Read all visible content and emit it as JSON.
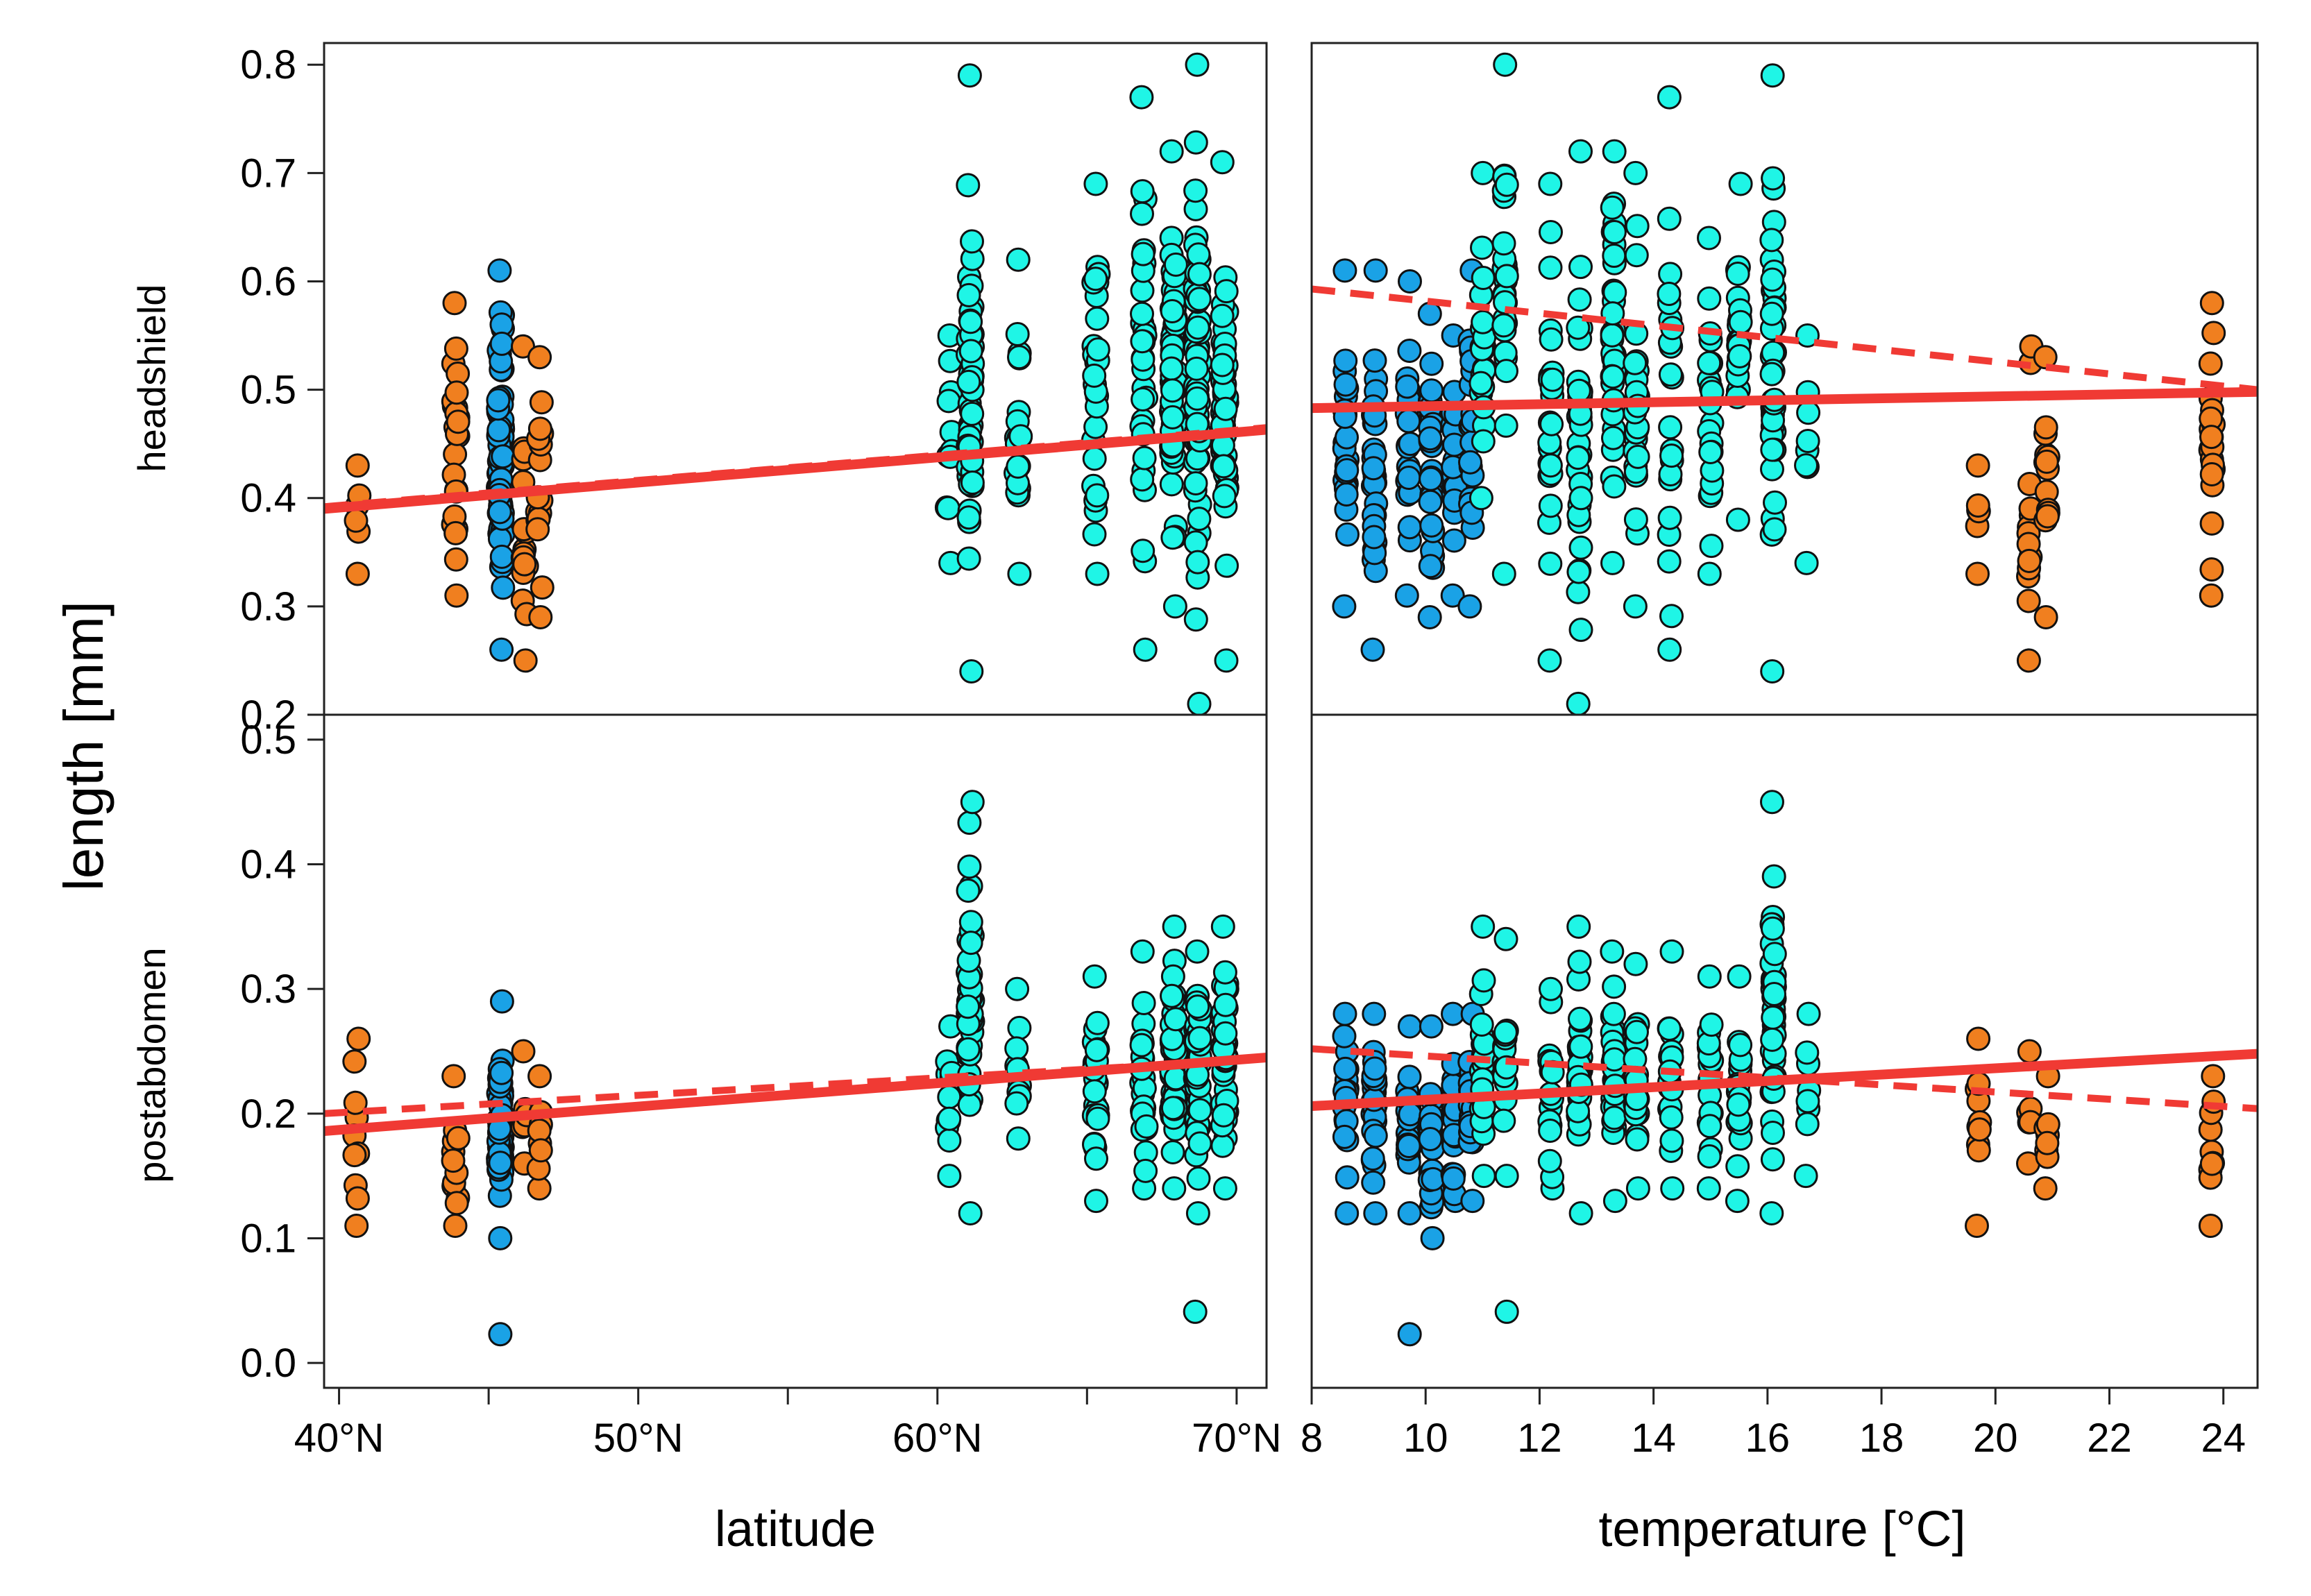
{
  "colors": {
    "orange": "#f07f1f",
    "blue": "#1aa2e6",
    "cyan": "#1ff5e6",
    "fit": "#f03a34",
    "outline": "#111111"
  },
  "chart_data": {
    "type": "scatter",
    "ylabel": "length [mm]",
    "row_labels": [
      "headshield",
      "postabdomen"
    ],
    "panels": [
      {
        "id": "lat-head",
        "row": 0,
        "col": 0,
        "xlim": [
          39.5,
          71
        ],
        "ylim": [
          0.2,
          0.82
        ],
        "yticks": [
          0.2,
          0.3,
          0.4,
          0.5,
          0.6,
          0.7,
          0.8
        ],
        "ytick_labels": [
          "0.2",
          "0.3",
          "0.4",
          "0.5",
          "0.6",
          "0.7",
          "0.8"
        ],
        "groups": [
          {
            "x": 40.6,
            "color": "orange",
            "ymin": 0.33,
            "ymax": 0.43,
            "n": 6
          },
          {
            "x": 43.9,
            "color": "orange",
            "ymin": 0.31,
            "ymax": 0.58,
            "n": 24
          },
          {
            "x": 45.4,
            "color": "blue",
            "ymin": 0.26,
            "ymax": 0.61,
            "n": 80
          },
          {
            "x": 46.2,
            "color": "orange",
            "ymin": 0.25,
            "ymax": 0.54,
            "n": 18
          },
          {
            "x": 46.7,
            "color": "orange",
            "ymin": 0.29,
            "ymax": 0.53,
            "n": 16
          },
          {
            "x": 60.4,
            "color": "cyan",
            "ymin": 0.34,
            "ymax": 0.55,
            "n": 12
          },
          {
            "x": 61.1,
            "color": "cyan",
            "ymin": 0.24,
            "ymax": 0.79,
            "n": 50
          },
          {
            "x": 62.7,
            "color": "cyan",
            "ymin": 0.33,
            "ymax": 0.62,
            "n": 22
          },
          {
            "x": 65.3,
            "color": "cyan",
            "ymin": 0.33,
            "ymax": 0.69,
            "n": 28
          },
          {
            "x": 66.9,
            "color": "cyan",
            "ymin": 0.26,
            "ymax": 0.77,
            "n": 32
          },
          {
            "x": 67.9,
            "color": "cyan",
            "ymin": 0.3,
            "ymax": 0.72,
            "n": 60
          },
          {
            "x": 68.7,
            "color": "cyan",
            "ymin": 0.21,
            "ymax": 0.8,
            "n": 60
          },
          {
            "x": 69.6,
            "color": "cyan",
            "ymin": 0.25,
            "ymax": 0.71,
            "n": 55
          }
        ],
        "fit_solid": [
          [
            39.5,
            0.39
          ],
          [
            71,
            0.463
          ]
        ],
        "fit_dashed": [
          [
            39.5,
            0.392
          ],
          [
            71,
            0.465
          ]
        ]
      },
      {
        "id": "temp-head",
        "row": 0,
        "col": 1,
        "xlim": [
          8,
          24.6
        ],
        "ylim": [
          0.2,
          0.82
        ],
        "yticks": [
          0.2,
          0.3,
          0.4,
          0.5,
          0.6,
          0.7,
          0.8
        ],
        "groups": [
          {
            "x": 8.6,
            "color": "blue",
            "ymin": 0.3,
            "ymax": 0.61,
            "n": 24
          },
          {
            "x": 9.1,
            "color": "blue",
            "ymin": 0.26,
            "ymax": 0.61,
            "n": 30
          },
          {
            "x": 9.7,
            "color": "blue",
            "ymin": 0.31,
            "ymax": 0.6,
            "n": 22
          },
          {
            "x": 10.1,
            "color": "blue",
            "ymin": 0.29,
            "ymax": 0.57,
            "n": 28
          },
          {
            "x": 10.5,
            "color": "blue",
            "ymin": 0.31,
            "ymax": 0.55,
            "n": 24
          },
          {
            "x": 10.8,
            "color": "blue",
            "ymin": 0.3,
            "ymax": 0.61,
            "n": 20
          },
          {
            "x": 11.0,
            "color": "cyan",
            "ymin": 0.4,
            "ymax": 0.7,
            "n": 22
          },
          {
            "x": 11.4,
            "color": "cyan",
            "ymin": 0.33,
            "ymax": 0.8,
            "n": 26
          },
          {
            "x": 12.2,
            "color": "cyan",
            "ymin": 0.25,
            "ymax": 0.69,
            "n": 24
          },
          {
            "x": 12.7,
            "color": "cyan",
            "ymin": 0.21,
            "ymax": 0.72,
            "n": 34
          },
          {
            "x": 13.3,
            "color": "cyan",
            "ymin": 0.34,
            "ymax": 0.72,
            "n": 34
          },
          {
            "x": 13.7,
            "color": "cyan",
            "ymin": 0.3,
            "ymax": 0.7,
            "n": 26
          },
          {
            "x": 14.3,
            "color": "cyan",
            "ymin": 0.26,
            "ymax": 0.77,
            "n": 22
          },
          {
            "x": 15.0,
            "color": "cyan",
            "ymin": 0.33,
            "ymax": 0.64,
            "n": 22
          },
          {
            "x": 15.5,
            "color": "cyan",
            "ymin": 0.38,
            "ymax": 0.69,
            "n": 22
          },
          {
            "x": 16.1,
            "color": "cyan",
            "ymin": 0.24,
            "ymax": 0.79,
            "n": 42
          },
          {
            "x": 16.7,
            "color": "cyan",
            "ymin": 0.34,
            "ymax": 0.55,
            "n": 8
          },
          {
            "x": 19.7,
            "color": "orange",
            "ymin": 0.33,
            "ymax": 0.43,
            "n": 6
          },
          {
            "x": 20.6,
            "color": "orange",
            "ymin": 0.25,
            "ymax": 0.54,
            "n": 14
          },
          {
            "x": 20.9,
            "color": "orange",
            "ymin": 0.29,
            "ymax": 0.53,
            "n": 14
          },
          {
            "x": 23.8,
            "color": "orange",
            "ymin": 0.31,
            "ymax": 0.58,
            "n": 22
          }
        ],
        "fit_solid": [
          [
            8,
            0.483
          ],
          [
            24.6,
            0.498
          ]
        ],
        "fit_dashed": [
          [
            8,
            0.593
          ],
          [
            24.6,
            0.5
          ]
        ]
      },
      {
        "id": "lat-post",
        "row": 1,
        "col": 0,
        "xlim": [
          39.5,
          71
        ],
        "ylim": [
          -0.02,
          0.52
        ],
        "yticks": [
          0.0,
          0.1,
          0.2,
          0.3,
          0.4,
          0.5
        ],
        "ytick_labels": [
          "0.0",
          "0.1",
          "0.2",
          "0.3",
          "0.4",
          "0.5"
        ],
        "xticks": [
          40,
          45,
          50,
          55,
          60,
          65,
          70
        ],
        "xtick_labels": [
          "40°N",
          "",
          "50°N",
          "",
          "60°N",
          "",
          "70°N"
        ],
        "xlabel": "latitude",
        "groups": [
          {
            "x": 40.6,
            "color": "orange",
            "ymin": 0.11,
            "ymax": 0.26,
            "n": 10
          },
          {
            "x": 43.9,
            "color": "orange",
            "ymin": 0.11,
            "ymax": 0.23,
            "n": 12
          },
          {
            "x": 45.4,
            "color": "blue",
            "ymin": 0.1,
            "ymax": 0.29,
            "n": 60
          },
          {
            "x": 45.4,
            "color": "blue",
            "ymin": 0.023,
            "ymax": 0.023,
            "n": 1
          },
          {
            "x": 46.2,
            "color": "orange",
            "ymin": 0.16,
            "ymax": 0.25,
            "n": 6
          },
          {
            "x": 46.7,
            "color": "orange",
            "ymin": 0.14,
            "ymax": 0.23,
            "n": 8
          },
          {
            "x": 60.4,
            "color": "cyan",
            "ymin": 0.15,
            "ymax": 0.27,
            "n": 12
          },
          {
            "x": 61.1,
            "color": "cyan",
            "ymin": 0.12,
            "ymax": 0.45,
            "n": 44
          },
          {
            "x": 62.7,
            "color": "cyan",
            "ymin": 0.18,
            "ymax": 0.3,
            "n": 10
          },
          {
            "x": 65.3,
            "color": "cyan",
            "ymin": 0.13,
            "ymax": 0.31,
            "n": 24
          },
          {
            "x": 66.9,
            "color": "cyan",
            "ymin": 0.14,
            "ymax": 0.33,
            "n": 24
          },
          {
            "x": 67.9,
            "color": "cyan",
            "ymin": 0.14,
            "ymax": 0.35,
            "n": 50
          },
          {
            "x": 68.7,
            "color": "cyan",
            "ymin": 0.12,
            "ymax": 0.33,
            "n": 44
          },
          {
            "x": 68.6,
            "color": "cyan",
            "ymin": 0.041,
            "ymax": 0.041,
            "n": 1
          },
          {
            "x": 69.6,
            "color": "cyan",
            "ymin": 0.14,
            "ymax": 0.35,
            "n": 40
          }
        ],
        "fit_solid": [
          [
            39.5,
            0.186
          ],
          [
            71,
            0.245
          ]
        ],
        "fit_dashed": [
          [
            39.5,
            0.2
          ],
          [
            71,
            0.244
          ]
        ]
      },
      {
        "id": "temp-post",
        "row": 1,
        "col": 1,
        "xlim": [
          8,
          24.6
        ],
        "ylim": [
          -0.02,
          0.52
        ],
        "yticks": [
          0.0,
          0.1,
          0.2,
          0.3,
          0.4,
          0.5
        ],
        "xticks": [
          8,
          10,
          12,
          14,
          16,
          18,
          20,
          22,
          24
        ],
        "xtick_labels": [
          "8",
          "10",
          "12",
          "14",
          "16",
          "18",
          "20",
          "22",
          "24"
        ],
        "xlabel": "temperature [°C]",
        "groups": [
          {
            "x": 8.6,
            "color": "blue",
            "ymin": 0.12,
            "ymax": 0.28,
            "n": 20
          },
          {
            "x": 9.1,
            "color": "blue",
            "ymin": 0.12,
            "ymax": 0.28,
            "n": 26
          },
          {
            "x": 9.7,
            "color": "blue",
            "ymin": 0.12,
            "ymax": 0.27,
            "n": 22
          },
          {
            "x": 9.7,
            "color": "blue",
            "ymin": 0.023,
            "ymax": 0.023,
            "n": 1
          },
          {
            "x": 10.1,
            "color": "blue",
            "ymin": 0.1,
            "ymax": 0.27,
            "n": 26
          },
          {
            "x": 10.5,
            "color": "blue",
            "ymin": 0.13,
            "ymax": 0.28,
            "n": 24
          },
          {
            "x": 10.8,
            "color": "blue",
            "ymin": 0.13,
            "ymax": 0.28,
            "n": 20
          },
          {
            "x": 11.0,
            "color": "cyan",
            "ymin": 0.15,
            "ymax": 0.35,
            "n": 20
          },
          {
            "x": 11.4,
            "color": "cyan",
            "ymin": 0.15,
            "ymax": 0.34,
            "n": 16
          },
          {
            "x": 11.4,
            "color": "cyan",
            "ymin": 0.041,
            "ymax": 0.041,
            "n": 1
          },
          {
            "x": 12.2,
            "color": "cyan",
            "ymin": 0.14,
            "ymax": 0.3,
            "n": 18
          },
          {
            "x": 12.7,
            "color": "cyan",
            "ymin": 0.12,
            "ymax": 0.35,
            "n": 28
          },
          {
            "x": 13.3,
            "color": "cyan",
            "ymin": 0.13,
            "ymax": 0.33,
            "n": 28
          },
          {
            "x": 13.7,
            "color": "cyan",
            "ymin": 0.14,
            "ymax": 0.32,
            "n": 20
          },
          {
            "x": 14.3,
            "color": "cyan",
            "ymin": 0.14,
            "ymax": 0.33,
            "n": 18
          },
          {
            "x": 15.0,
            "color": "cyan",
            "ymin": 0.14,
            "ymax": 0.31,
            "n": 18
          },
          {
            "x": 15.5,
            "color": "cyan",
            "ymin": 0.13,
            "ymax": 0.31,
            "n": 18
          },
          {
            "x": 16.1,
            "color": "cyan",
            "ymin": 0.12,
            "ymax": 0.45,
            "n": 40
          },
          {
            "x": 16.7,
            "color": "cyan",
            "ymin": 0.15,
            "ymax": 0.28,
            "n": 8
          },
          {
            "x": 19.7,
            "color": "orange",
            "ymin": 0.11,
            "ymax": 0.26,
            "n": 10
          },
          {
            "x": 20.6,
            "color": "orange",
            "ymin": 0.16,
            "ymax": 0.25,
            "n": 6
          },
          {
            "x": 20.9,
            "color": "orange",
            "ymin": 0.14,
            "ymax": 0.23,
            "n": 8
          },
          {
            "x": 23.8,
            "color": "orange",
            "ymin": 0.11,
            "ymax": 0.23,
            "n": 10
          }
        ],
        "fit_solid": [
          [
            8,
            0.206
          ],
          [
            24.6,
            0.248
          ]
        ],
        "fit_dashed": [
          [
            8,
            0.252
          ],
          [
            24.6,
            0.204
          ]
        ]
      }
    ]
  }
}
